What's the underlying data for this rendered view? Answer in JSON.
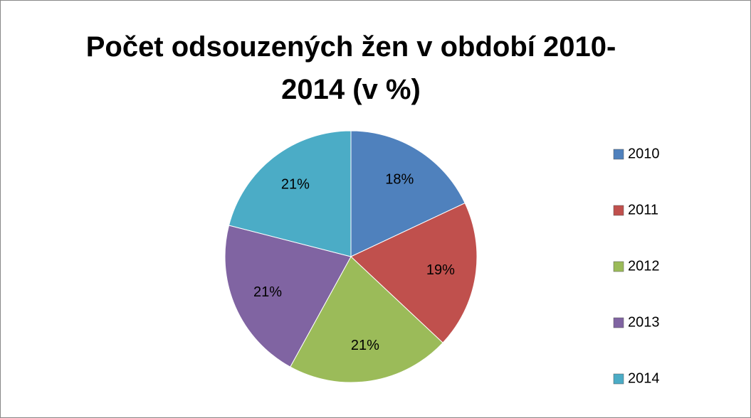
{
  "chart_data": {
    "type": "pie",
    "title": "Počet odsouzených žen v období 2010-2014 (v %)",
    "categories": [
      "2010",
      "2011",
      "2012",
      "2013",
      "2014"
    ],
    "values": [
      18,
      19,
      21,
      21,
      21
    ],
    "value_labels": [
      "18%",
      "19%",
      "21%",
      "21%",
      "21%"
    ],
    "colors": [
      "#4f81bd",
      "#c0504d",
      "#9bbb59",
      "#8064a2",
      "#4bacc6"
    ],
    "legend": "right"
  }
}
